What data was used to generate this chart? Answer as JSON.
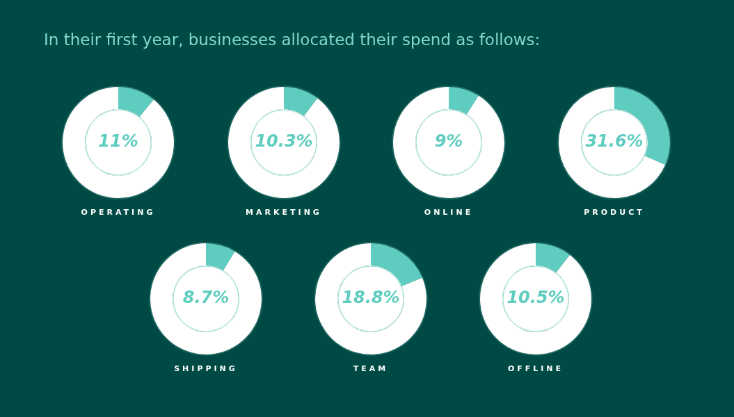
{
  "chart_data": [
    {
      "type": "other",
      "title": "In their first year, businesses allocated their spend as follows:"
    },
    {
      "type": "donut",
      "title": "OPERATING",
      "categories": [
        null,
        null
      ],
      "values": [
        11,
        89
      ],
      "colors": [
        "#5ecdbf",
        "#ffffff"
      ],
      "value_labels": [
        "11%",
        null
      ]
    },
    {
      "type": "donut",
      "title": "MARKETING",
      "categories": [
        null,
        null
      ],
      "values": [
        10.3,
        89.7
      ],
      "colors": [
        "#5ecdbf",
        "#ffffff"
      ],
      "value_labels": [
        "10.3%",
        null
      ]
    },
    {
      "type": "donut",
      "title": "ONLINE",
      "categories": [
        null,
        null
      ],
      "values": [
        9,
        91
      ],
      "colors": [
        "#5ecdbf",
        "#ffffff"
      ],
      "value_labels": [
        "9%",
        null
      ]
    },
    {
      "type": "donut",
      "title": "PRODUCT",
      "categories": [
        null,
        null
      ],
      "values": [
        31.6,
        68.4
      ],
      "colors": [
        "#5ecdbf",
        "#ffffff"
      ],
      "value_labels": [
        "31.6%",
        null
      ]
    },
    {
      "type": "donut",
      "title": "SHIPPING",
      "categories": [
        null,
        null
      ],
      "values": [
        8.7,
        91.3
      ],
      "colors": [
        "#5ecdbf",
        "#ffffff"
      ],
      "value_labels": [
        "8.7%",
        null
      ]
    },
    {
      "type": "donut",
      "title": "TEAM",
      "categories": [
        null,
        null
      ],
      "values": [
        18.8,
        81.2
      ],
      "colors": [
        "#5ecdbf",
        "#ffffff"
      ],
      "value_labels": [
        "18.8%",
        null
      ]
    },
    {
      "type": "donut",
      "title": "OFFLINE",
      "categories": [
        null,
        null
      ],
      "values": [
        10.5,
        89.5
      ],
      "colors": [
        "#5ecdbf",
        "#ffffff"
      ],
      "value_labels": [
        "10.5%",
        null
      ]
    }
  ]
}
